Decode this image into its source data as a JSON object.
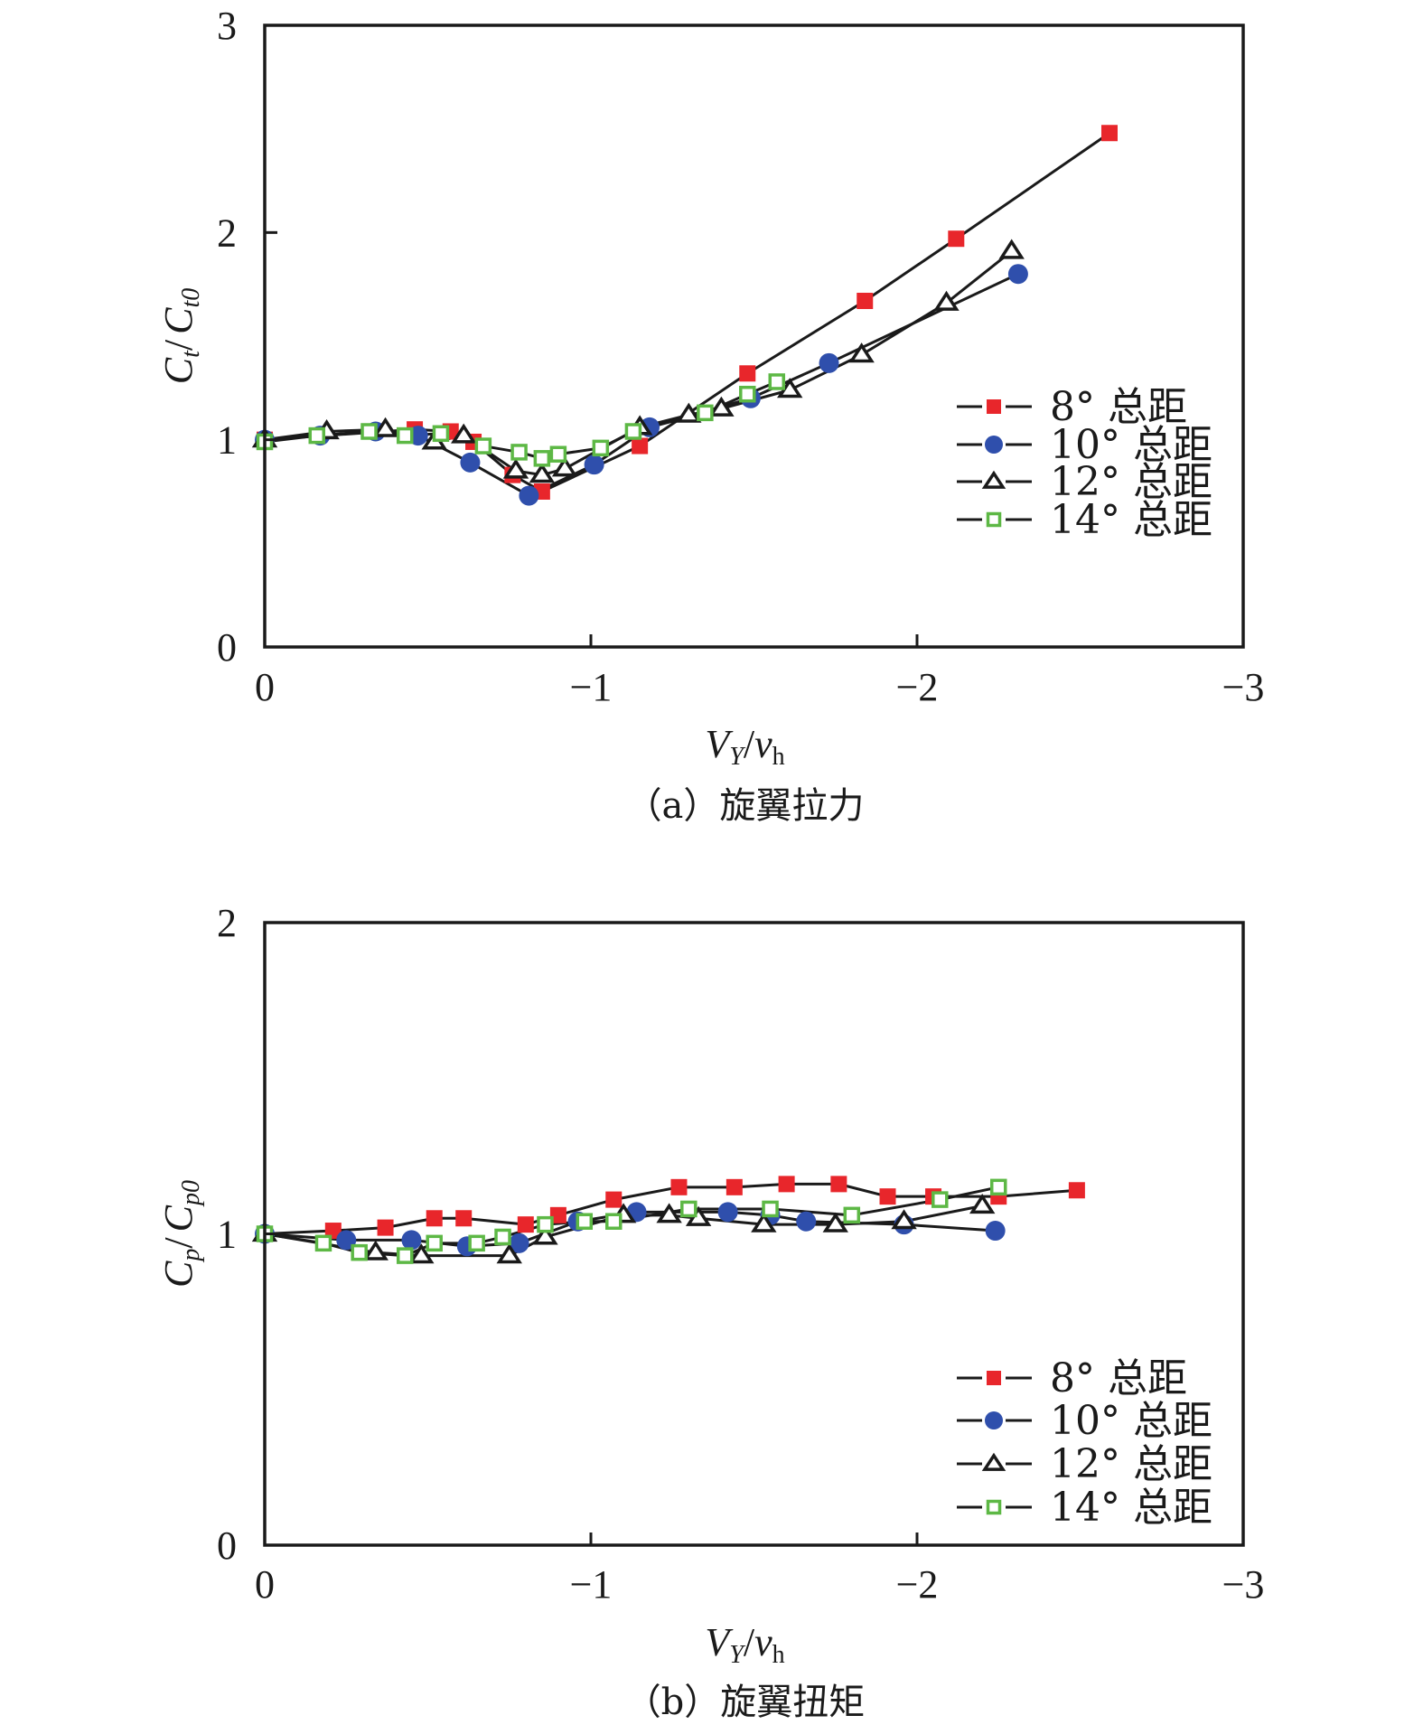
{
  "colors": {
    "red": "#e8262b",
    "blue": "#2f4fac",
    "black": "#1a1a1a",
    "green": "#5db845"
  },
  "chart_data": [
    {
      "type": "line",
      "caption": "（a）旋翼拉力",
      "xlabel": "V_Y/v_h",
      "xlabel_main": "V",
      "xlabel_sub1": "Y",
      "xlabel_slash": "/",
      "xlabel_main2": "v",
      "xlabel_sub2": "h",
      "ylabel": "C_t/C_t0",
      "ylabel_main": "C",
      "ylabel_sub1": "t",
      "ylabel_slash": "/",
      "ylabel_main2": "C",
      "ylabel_sub2": "t0",
      "xlim": [
        0,
        -3
      ],
      "ylim": [
        0,
        3
      ],
      "xticks": [
        0,
        -1,
        -2,
        -3
      ],
      "xtick_labels": [
        "0",
        "−1",
        "−2",
        "−3"
      ],
      "yticks": [
        0,
        1,
        2,
        3
      ],
      "ytick_labels": [
        "0",
        "1",
        "2",
        "3"
      ],
      "grid": false,
      "legend_position": "bottom-right",
      "series": [
        {
          "name": "8° 总距",
          "marker": "filled-square",
          "color_key": "red",
          "x": [
            0,
            -0.46,
            -0.57,
            -0.64,
            -0.76,
            -0.85,
            -1.15,
            -1.48,
            -1.84,
            -2.12,
            -2.59
          ],
          "y": [
            1.0,
            1.05,
            1.04,
            0.99,
            0.83,
            0.75,
            0.97,
            1.32,
            1.67,
            1.97,
            2.48
          ]
        },
        {
          "name": "10° 总距",
          "marker": "filled-circle",
          "color_key": "blue",
          "x": [
            0,
            -0.17,
            -0.34,
            -0.47,
            -0.63,
            -0.81,
            -1.01,
            -1.18,
            -1.49,
            -1.73,
            -2.31
          ],
          "y": [
            1.0,
            1.02,
            1.04,
            1.02,
            0.89,
            0.73,
            0.88,
            1.06,
            1.2,
            1.37,
            1.8
          ]
        },
        {
          "name": "12° 总距",
          "marker": "open-triangle",
          "color_key": "black",
          "x": [
            0,
            -0.19,
            -0.37,
            -0.52,
            -0.61,
            -0.77,
            -0.85,
            -0.92,
            -1.15,
            -1.3,
            -1.4,
            -1.61,
            -1.83,
            -2.09,
            -2.29
          ],
          "y": [
            1.0,
            1.04,
            1.05,
            0.99,
            1.02,
            0.85,
            0.83,
            0.86,
            1.06,
            1.12,
            1.15,
            1.24,
            1.41,
            1.66,
            1.91
          ]
        },
        {
          "name": "14° 总距",
          "marker": "open-square",
          "color_key": "green",
          "x": [
            0,
            -0.16,
            -0.32,
            -0.43,
            -0.54,
            -0.67,
            -0.78,
            -0.85,
            -0.9,
            -1.03,
            -1.13,
            -1.35,
            -1.48,
            -1.57
          ],
          "y": [
            0.99,
            1.02,
            1.04,
            1.02,
            1.03,
            0.97,
            0.94,
            0.91,
            0.93,
            0.96,
            1.04,
            1.13,
            1.22,
            1.28
          ]
        }
      ]
    },
    {
      "type": "line",
      "caption": "（b）旋翼扭矩",
      "xlabel": "V_Y/v_h",
      "xlabel_main": "V",
      "xlabel_sub1": "Y",
      "xlabel_slash": "/",
      "xlabel_main2": "v",
      "xlabel_sub2": "h",
      "ylabel": "C_p/C_p0",
      "ylabel_main": "C",
      "ylabel_sub1": "p",
      "ylabel_slash": "/",
      "ylabel_main2": "C",
      "ylabel_sub2": "p0",
      "xlim": [
        0,
        -3
      ],
      "ylim": [
        0,
        2
      ],
      "xticks": [
        0,
        -1,
        -2,
        -3
      ],
      "xtick_labels": [
        "0",
        "−1",
        "−2",
        "−3"
      ],
      "yticks": [
        0,
        1,
        2
      ],
      "ytick_labels": [
        "0",
        "1",
        "2"
      ],
      "grid": false,
      "legend_position": "bottom-right",
      "series": [
        {
          "name": "8° 总距",
          "marker": "filled-square",
          "color_key": "red",
          "x": [
            0,
            -0.21,
            -0.37,
            -0.52,
            -0.61,
            -0.8,
            -0.9,
            -1.07,
            -1.27,
            -1.44,
            -1.6,
            -1.76,
            -1.91,
            -2.05,
            -2.25,
            -2.49
          ],
          "y": [
            1.0,
            1.01,
            1.02,
            1.05,
            1.05,
            1.03,
            1.06,
            1.11,
            1.15,
            1.15,
            1.16,
            1.16,
            1.12,
            1.12,
            1.12,
            1.14
          ]
        },
        {
          "name": "10° 总距",
          "marker": "filled-circle",
          "color_key": "blue",
          "x": [
            0,
            -0.25,
            -0.45,
            -0.62,
            -0.78,
            -0.96,
            -1.14,
            -1.42,
            -1.55,
            -1.66,
            -1.96,
            -2.24
          ],
          "y": [
            1.0,
            0.98,
            0.98,
            0.96,
            0.97,
            1.04,
            1.07,
            1.07,
            1.06,
            1.04,
            1.03,
            1.01
          ]
        },
        {
          "name": "12° 总距",
          "marker": "open-triangle",
          "color_key": "black",
          "x": [
            0,
            -0.34,
            -0.48,
            -0.75,
            -0.86,
            -1.1,
            -1.24,
            -1.33,
            -1.53,
            -1.75,
            -1.96,
            -2.2
          ],
          "y": [
            1.0,
            0.94,
            0.93,
            0.93,
            0.99,
            1.06,
            1.06,
            1.05,
            1.03,
            1.03,
            1.04,
            1.09
          ]
        },
        {
          "name": "14° 总距",
          "marker": "open-square",
          "color_key": "green",
          "x": [
            0,
            -0.18,
            -0.29,
            -0.43,
            -0.52,
            -0.65,
            -0.73,
            -0.86,
            -0.98,
            -1.07,
            -1.3,
            -1.55,
            -1.8,
            -2.07,
            -2.25
          ],
          "y": [
            1.0,
            0.97,
            0.94,
            0.93,
            0.97,
            0.97,
            0.99,
            1.03,
            1.04,
            1.04,
            1.08,
            1.08,
            1.06,
            1.11,
            1.15
          ]
        }
      ]
    }
  ]
}
